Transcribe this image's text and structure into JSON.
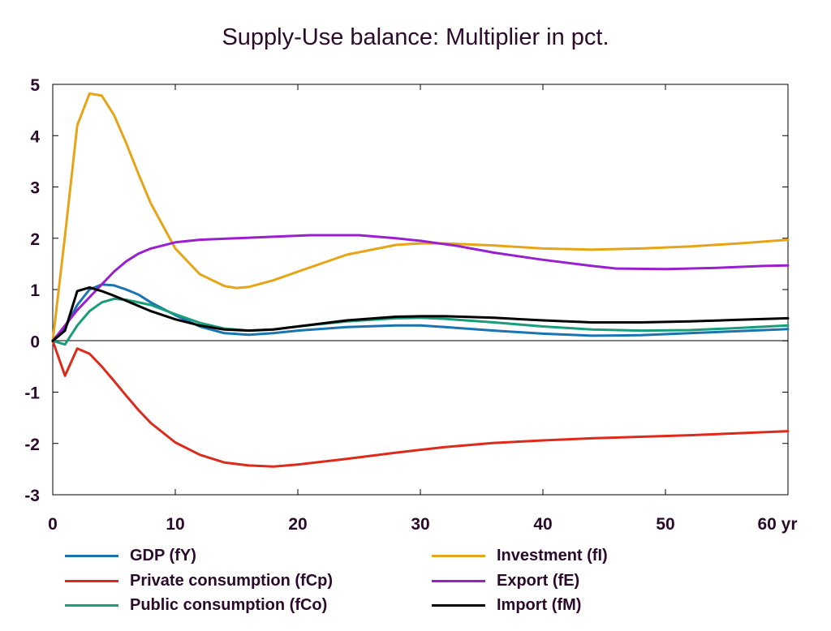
{
  "chart_data": {
    "type": "line",
    "title": "Supply-Use balance: Multiplier in pct.",
    "xlabel": "",
    "ylabel": "",
    "xlim": [
      0,
      60
    ],
    "ylim": [
      -3,
      5
    ],
    "x_ticks": [
      0,
      10,
      20,
      30,
      40,
      50,
      60
    ],
    "x_tick_labels": [
      "0",
      "10",
      "20",
      "30",
      "40",
      "50",
      "60 yr"
    ],
    "y_ticks": [
      5,
      4,
      3,
      2,
      1,
      0,
      -1,
      -2,
      -3
    ],
    "y_tick_labels": [
      "5",
      "4",
      "3",
      "2",
      "1",
      "0",
      "-1",
      "-2",
      "-3"
    ],
    "grid": false,
    "zero_line": true,
    "legend_position": "bottom",
    "series": [
      {
        "name": "GDP (fY)",
        "color": "#1a74b0",
        "points": [
          [
            0,
            0
          ],
          [
            1,
            0.25
          ],
          [
            2,
            0.7
          ],
          [
            3,
            1.0
          ],
          [
            4,
            1.1
          ],
          [
            5,
            1.08
          ],
          [
            6,
            1.0
          ],
          [
            7,
            0.9
          ],
          [
            8,
            0.75
          ],
          [
            10,
            0.5
          ],
          [
            12,
            0.28
          ],
          [
            14,
            0.15
          ],
          [
            16,
            0.12
          ],
          [
            18,
            0.15
          ],
          [
            20,
            0.2
          ],
          [
            24,
            0.27
          ],
          [
            28,
            0.3
          ],
          [
            30,
            0.3
          ],
          [
            32,
            0.27
          ],
          [
            36,
            0.2
          ],
          [
            40,
            0.14
          ],
          [
            44,
            0.1
          ],
          [
            48,
            0.11
          ],
          [
            52,
            0.15
          ],
          [
            56,
            0.19
          ],
          [
            60,
            0.23
          ]
        ]
      },
      {
        "name": "Private consumption (fCp)",
        "color": "#dd2a1a",
        "points": [
          [
            0,
            0
          ],
          [
            1,
            -0.68
          ],
          [
            2,
            -0.15
          ],
          [
            3,
            -0.25
          ],
          [
            4,
            -0.5
          ],
          [
            5,
            -0.78
          ],
          [
            6,
            -1.07
          ],
          [
            7,
            -1.35
          ],
          [
            8,
            -1.6
          ],
          [
            10,
            -1.98
          ],
          [
            12,
            -2.22
          ],
          [
            14,
            -2.37
          ],
          [
            16,
            -2.43
          ],
          [
            18,
            -2.45
          ],
          [
            20,
            -2.41
          ],
          [
            24,
            -2.3
          ],
          [
            28,
            -2.18
          ],
          [
            32,
            -2.07
          ],
          [
            36,
            -1.99
          ],
          [
            40,
            -1.94
          ],
          [
            44,
            -1.9
          ],
          [
            48,
            -1.87
          ],
          [
            52,
            -1.84
          ],
          [
            56,
            -1.8
          ],
          [
            60,
            -1.76
          ]
        ]
      },
      {
        "name": "Public consumption (fCo)",
        "color": "#1a9d7a",
        "points": [
          [
            0,
            0
          ],
          [
            1,
            -0.07
          ],
          [
            2,
            0.3
          ],
          [
            3,
            0.58
          ],
          [
            4,
            0.75
          ],
          [
            5,
            0.82
          ],
          [
            6,
            0.8
          ],
          [
            8,
            0.7
          ],
          [
            10,
            0.52
          ],
          [
            12,
            0.35
          ],
          [
            14,
            0.24
          ],
          [
            16,
            0.2
          ],
          [
            18,
            0.22
          ],
          [
            20,
            0.28
          ],
          [
            24,
            0.38
          ],
          [
            28,
            0.44
          ],
          [
            30,
            0.45
          ],
          [
            32,
            0.43
          ],
          [
            36,
            0.36
          ],
          [
            40,
            0.28
          ],
          [
            44,
            0.22
          ],
          [
            48,
            0.2
          ],
          [
            52,
            0.21
          ],
          [
            56,
            0.25
          ],
          [
            60,
            0.3
          ]
        ]
      },
      {
        "name": "Investment (fI)",
        "color": "#e6a417",
        "points": [
          [
            0,
            0
          ],
          [
            1,
            2.05
          ],
          [
            2,
            4.2
          ],
          [
            3,
            4.82
          ],
          [
            4,
            4.78
          ],
          [
            5,
            4.4
          ],
          [
            6,
            3.85
          ],
          [
            7,
            3.25
          ],
          [
            8,
            2.68
          ],
          [
            10,
            1.8
          ],
          [
            12,
            1.3
          ],
          [
            14,
            1.07
          ],
          [
            15,
            1.03
          ],
          [
            16,
            1.05
          ],
          [
            18,
            1.18
          ],
          [
            20,
            1.35
          ],
          [
            24,
            1.68
          ],
          [
            28,
            1.87
          ],
          [
            30,
            1.9
          ],
          [
            32,
            1.9
          ],
          [
            36,
            1.86
          ],
          [
            40,
            1.8
          ],
          [
            44,
            1.78
          ],
          [
            48,
            1.8
          ],
          [
            52,
            1.84
          ],
          [
            56,
            1.9
          ],
          [
            60,
            1.97
          ]
        ]
      },
      {
        "name": "Export (fE)",
        "color": "#9a1fd0",
        "points": [
          [
            0,
            0
          ],
          [
            1,
            0.3
          ],
          [
            2,
            0.6
          ],
          [
            3,
            0.85
          ],
          [
            4,
            1.1
          ],
          [
            5,
            1.35
          ],
          [
            6,
            1.55
          ],
          [
            7,
            1.7
          ],
          [
            8,
            1.8
          ],
          [
            10,
            1.92
          ],
          [
            12,
            1.97
          ],
          [
            15,
            2.0
          ],
          [
            18,
            2.03
          ],
          [
            21,
            2.06
          ],
          [
            25,
            2.06
          ],
          [
            28,
            2.0
          ],
          [
            30,
            1.95
          ],
          [
            33,
            1.85
          ],
          [
            36,
            1.72
          ],
          [
            40,
            1.58
          ],
          [
            44,
            1.46
          ],
          [
            46,
            1.41
          ],
          [
            50,
            1.4
          ],
          [
            54,
            1.42
          ],
          [
            58,
            1.46
          ],
          [
            60,
            1.47
          ]
        ]
      },
      {
        "name": "Import (fM)",
        "color": "#000000",
        "points": [
          [
            0,
            0
          ],
          [
            1,
            0.2
          ],
          [
            2,
            0.97
          ],
          [
            3,
            1.04
          ],
          [
            4,
            0.97
          ],
          [
            5,
            0.88
          ],
          [
            6,
            0.78
          ],
          [
            7,
            0.68
          ],
          [
            8,
            0.58
          ],
          [
            10,
            0.42
          ],
          [
            12,
            0.3
          ],
          [
            14,
            0.22
          ],
          [
            16,
            0.2
          ],
          [
            18,
            0.22
          ],
          [
            20,
            0.28
          ],
          [
            24,
            0.4
          ],
          [
            28,
            0.47
          ],
          [
            30,
            0.48
          ],
          [
            32,
            0.48
          ],
          [
            36,
            0.45
          ],
          [
            40,
            0.4
          ],
          [
            44,
            0.36
          ],
          [
            48,
            0.36
          ],
          [
            52,
            0.38
          ],
          [
            56,
            0.41
          ],
          [
            60,
            0.44
          ]
        ]
      }
    ]
  }
}
